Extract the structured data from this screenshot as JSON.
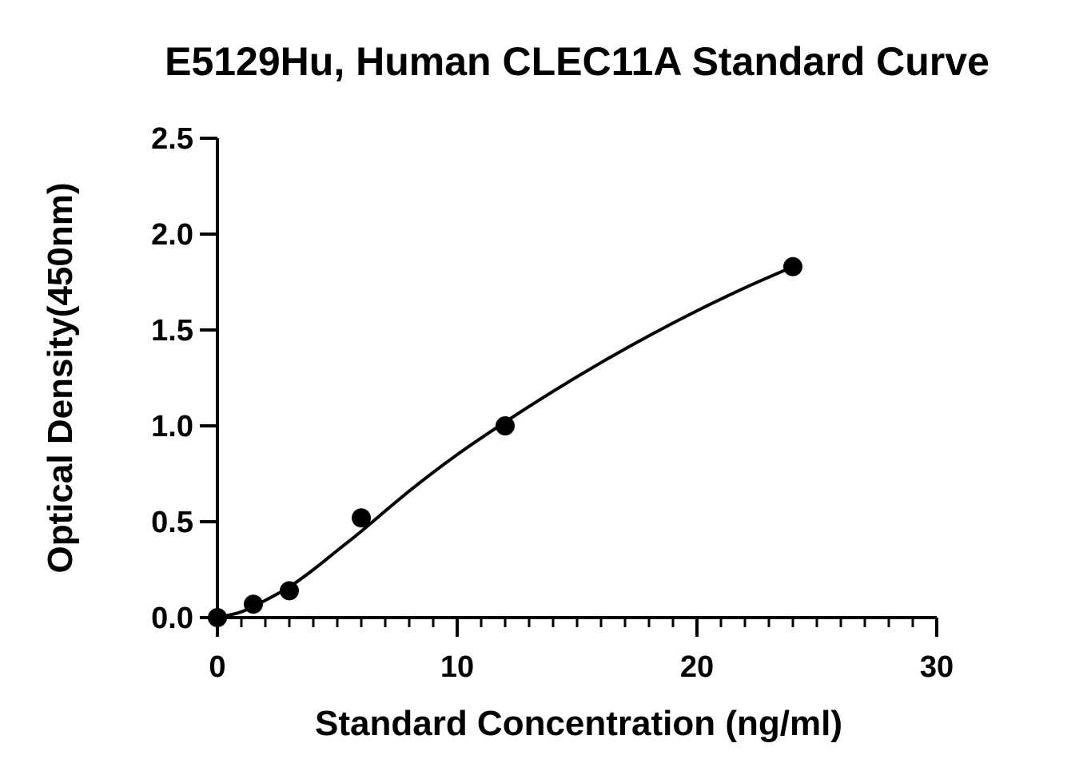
{
  "chart_data": {
    "type": "scatter",
    "title": "E5129Hu, Human CLEC11A Standard Curve",
    "xlabel": "Standard Concentration (ng/ml)",
    "ylabel": "Optical Density(450nm)",
    "xlim": [
      0,
      30
    ],
    "ylim": [
      0,
      2.5
    ],
    "x_ticks": [
      0,
      10,
      20,
      30
    ],
    "x_tick_labels": [
      "0",
      "10",
      "20",
      "30"
    ],
    "y_ticks": [
      0,
      0.5,
      1.0,
      1.5,
      2.0,
      2.5
    ],
    "y_tick_labels": [
      "0.0",
      "0.5",
      "1.0",
      "1.5",
      "2.0",
      "2.5"
    ],
    "x_minor_step": 1,
    "grid": false,
    "series": [
      {
        "x": [
          0,
          1.5,
          3,
          6,
          12,
          24
        ],
        "y": [
          0.0,
          0.07,
          0.14,
          0.52,
          1.0,
          1.83
        ]
      }
    ],
    "fit_curve": {
      "x": [
        0,
        1,
        2,
        3,
        4,
        5,
        6,
        8,
        10,
        12,
        14,
        16,
        18,
        20,
        22,
        24
      ],
      "y": [
        0.0,
        0.03,
        0.09,
        0.16,
        0.25,
        0.35,
        0.45,
        0.66,
        0.85,
        1.02,
        1.18,
        1.33,
        1.47,
        1.6,
        1.72,
        1.83
      ]
    }
  }
}
